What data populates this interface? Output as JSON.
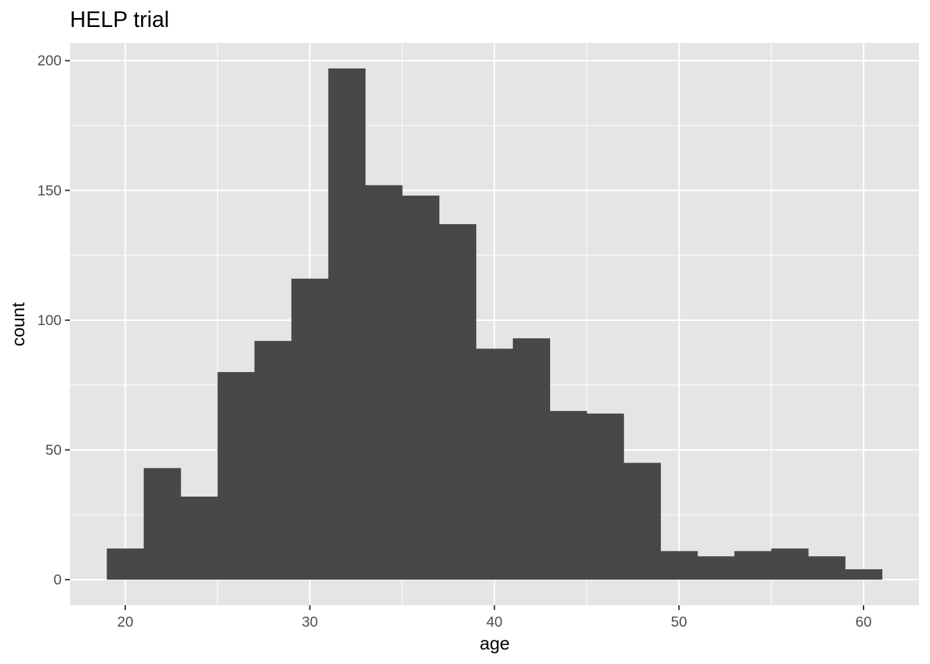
{
  "chart_data": {
    "type": "bar",
    "title": "HELP trial",
    "xlabel": "age",
    "ylabel": "count",
    "bin_width": 2,
    "bins": [
      {
        "x0": 19,
        "x1": 21,
        "count": 12
      },
      {
        "x0": 21,
        "x1": 23,
        "count": 43
      },
      {
        "x0": 23,
        "x1": 25,
        "count": 32
      },
      {
        "x0": 25,
        "x1": 27,
        "count": 80
      },
      {
        "x0": 27,
        "x1": 29,
        "count": 92
      },
      {
        "x0": 29,
        "x1": 31,
        "count": 116
      },
      {
        "x0": 31,
        "x1": 33,
        "count": 197
      },
      {
        "x0": 33,
        "x1": 35,
        "count": 152
      },
      {
        "x0": 35,
        "x1": 37,
        "count": 148
      },
      {
        "x0": 37,
        "x1": 39,
        "count": 137
      },
      {
        "x0": 39,
        "x1": 41,
        "count": 89
      },
      {
        "x0": 41,
        "x1": 43,
        "count": 93
      },
      {
        "x0": 43,
        "x1": 45,
        "count": 65
      },
      {
        "x0": 45,
        "x1": 47,
        "count": 64
      },
      {
        "x0": 47,
        "x1": 49,
        "count": 45
      },
      {
        "x0": 49,
        "x1": 51,
        "count": 11
      },
      {
        "x0": 51,
        "x1": 53,
        "count": 9
      },
      {
        "x0": 53,
        "x1": 55,
        "count": 11
      },
      {
        "x0": 55,
        "x1": 57,
        "count": 12
      },
      {
        "x0": 57,
        "x1": 59,
        "count": 9
      },
      {
        "x0": 59,
        "x1": 61,
        "count": 4
      }
    ],
    "xlim": [
      17,
      63
    ],
    "ylim": [
      -9.85,
      206.85
    ],
    "x_ticks": [
      20,
      30,
      40,
      50,
      60
    ],
    "x_minor": [
      25,
      35,
      45,
      55
    ],
    "y_ticks": [
      0,
      50,
      100,
      150,
      200
    ],
    "y_minor": [
      25,
      75,
      125,
      175
    ],
    "grid": true,
    "legend": "none",
    "colors": {
      "bar": "#484848",
      "panel_bg": "#e5e5e5",
      "grid": "#ffffff",
      "tick_text": "#4d4d4d",
      "tick_mark": "#333333"
    }
  }
}
